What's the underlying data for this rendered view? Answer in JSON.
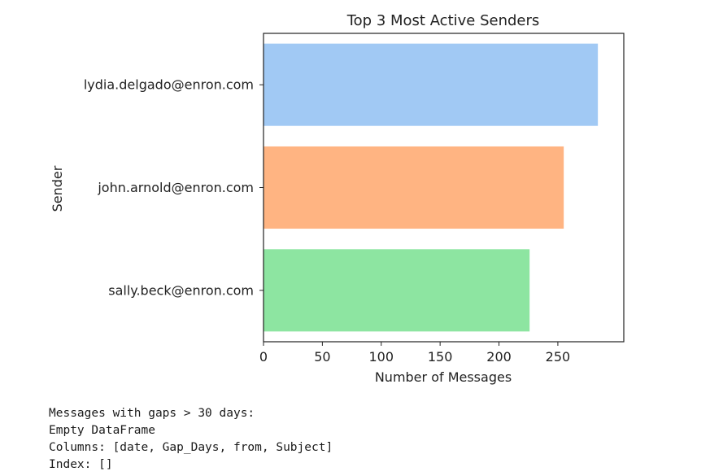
{
  "chart_data": {
    "type": "bar",
    "orientation": "horizontal",
    "title": "Top 3 Most Active Senders",
    "xlabel": "Number of Messages",
    "ylabel": "Sender",
    "categories": [
      "lydia.delgado@enron.com",
      "john.arnold@enron.com",
      "sally.beck@enron.com"
    ],
    "values": [
      284,
      255,
      226
    ],
    "colors": [
      "#a1c9f4",
      "#ffb482",
      "#8de5a1"
    ],
    "xlim": [
      0,
      306
    ],
    "xticks": [
      0,
      50,
      100,
      150,
      200,
      250
    ],
    "grid": false,
    "legend": "none"
  },
  "output": {
    "lines": [
      "Messages with gaps > 30 days:",
      "Empty DataFrame",
      "Columns: [date, Gap_Days, from, Subject]",
      "Index: []"
    ]
  }
}
